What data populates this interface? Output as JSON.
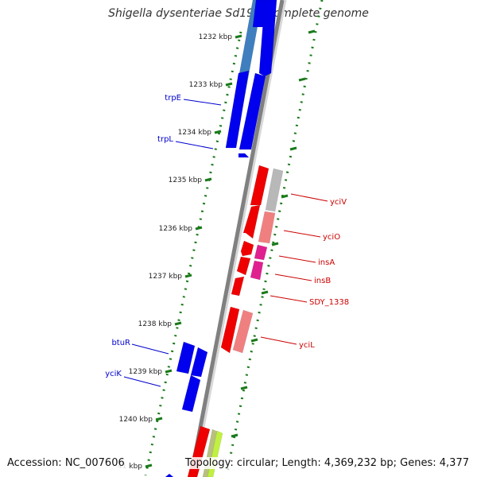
{
  "title": "Shigella dysenteriae Sd197, complete genome",
  "accession_text": "Accession: NC_007606",
  "summary_text": "Topology: circular; Length: 4,369,232 bp; Genes: 4,377",
  "colors": {
    "backbone": "#808080",
    "tick": "#1a7a1a",
    "blue_gene": "#0000ee",
    "steel_gene": "#3f7fbf",
    "red_gene": "#ee0000",
    "salmon_gene": "#f08080",
    "gray_gene": "#b8b8b8",
    "magenta_gene": "#e0208f",
    "olive_gene": "#b8c080",
    "lime_gene": "#c0f040",
    "blue_label": "#0000cc",
    "red_label": "#cc0000"
  },
  "tick_labels": [
    "1232 kbp",
    "1233 kbp",
    "1234 kbp",
    "1235 kbp",
    "1236 kbp",
    "1237 kbp",
    "1238 kbp",
    "1239 kbp",
    "1240 kbp",
    "41 kbp"
  ],
  "gene_labels_left": [
    "trpE",
    "trpL",
    "btuR",
    "yciK"
  ],
  "gene_labels_right": [
    "yciV",
    "yciO",
    "insA",
    "insB",
    "SDY_1338",
    "yciL"
  ]
}
